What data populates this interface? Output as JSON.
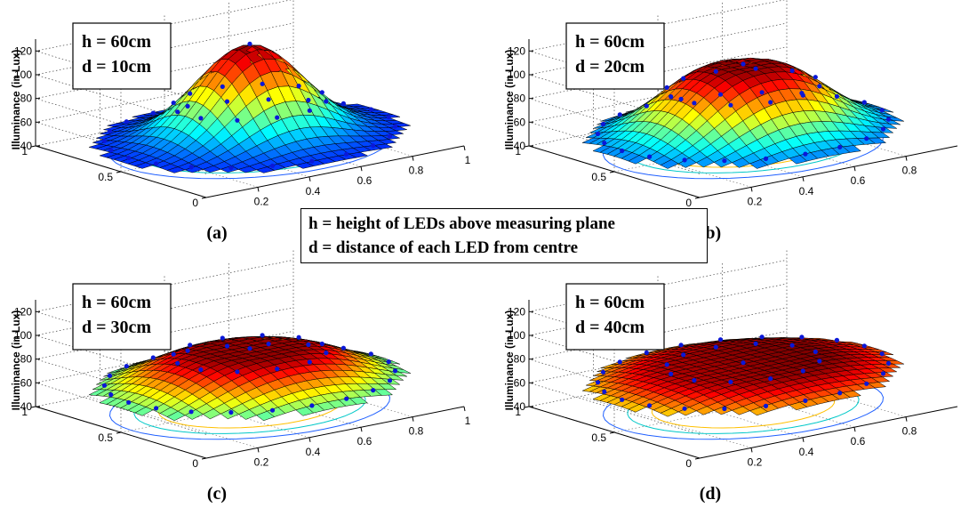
{
  "figure": {
    "legend": {
      "line1": "h = height of LEDs above measuring plane",
      "line2": "d = distance of each LED from centre"
    }
  },
  "chart_data": [
    {
      "type": "surface",
      "panel_label": "(a)",
      "box_lines": [
        "h = 60cm",
        "d = 10cm"
      ],
      "zlabel": "Illuminance (in Lux)",
      "zticks": [
        40,
        60,
        80,
        100,
        120
      ],
      "zlim": [
        40,
        130
      ],
      "xticks": [
        "0.2",
        "0.4",
        "0.6",
        "0.8",
        "1"
      ],
      "yticks": [
        "0",
        "0.5",
        "1"
      ],
      "xlim": [
        0,
        1
      ],
      "ylim": [
        0,
        1
      ],
      "peak": 125,
      "edge": 47,
      "spread": 0.3,
      "plateau": 0.0,
      "skew": 0.0,
      "grid": true
    },
    {
      "type": "surface",
      "panel_label": "(b)",
      "box_lines": [
        "h = 60cm",
        "d = 20cm"
      ],
      "zlabel": "Illuminance (in Lux)",
      "zticks": [
        40,
        60,
        80,
        100,
        120
      ],
      "zlim": [
        40,
        130
      ],
      "xticks": [
        "0.2",
        "0.4",
        "0.6",
        "0.8"
      ],
      "yticks": [
        "0",
        "0.5",
        "1"
      ],
      "xlim": [
        0,
        1
      ],
      "ylim": [
        0,
        1
      ],
      "peak": 108,
      "edge": 47,
      "spread": 0.33,
      "plateau": 0.08,
      "skew": 0.0,
      "grid": true
    },
    {
      "type": "surface",
      "panel_label": "(c)",
      "box_lines": [
        "h = 60cm",
        "d = 30cm"
      ],
      "zlabel": "Illuminance (in Lux)",
      "zticks": [
        40,
        60,
        80,
        100,
        120
      ],
      "zlim": [
        40,
        130
      ],
      "xticks": [
        "0.2",
        "0.4",
        "0.6",
        "0.8",
        "1"
      ],
      "yticks": [
        "0",
        "0.5",
        "1"
      ],
      "xlim": [
        0,
        1
      ],
      "ylim": [
        0,
        1
      ],
      "peak": 88,
      "edge": 50,
      "spread": 0.38,
      "plateau": 0.14,
      "skew": 0.0,
      "grid": true
    },
    {
      "type": "surface",
      "panel_label": "(d)",
      "box_lines": [
        "h = 60cm",
        "d = 40cm"
      ],
      "zlabel": "Illuminance (in Lux)",
      "zticks": [
        40,
        60,
        80,
        100,
        120
      ],
      "zlim": [
        40,
        130
      ],
      "xticks": [
        "0.2",
        "0.4",
        "0.6",
        "0.8"
      ],
      "yticks": [
        "0",
        "0.5",
        "1"
      ],
      "xlim": [
        0,
        1
      ],
      "ylim": [
        0,
        1
      ],
      "peak": 76,
      "edge": 52,
      "spread": 0.45,
      "plateau": 0.22,
      "skew": 0.08,
      "grid": true
    }
  ]
}
